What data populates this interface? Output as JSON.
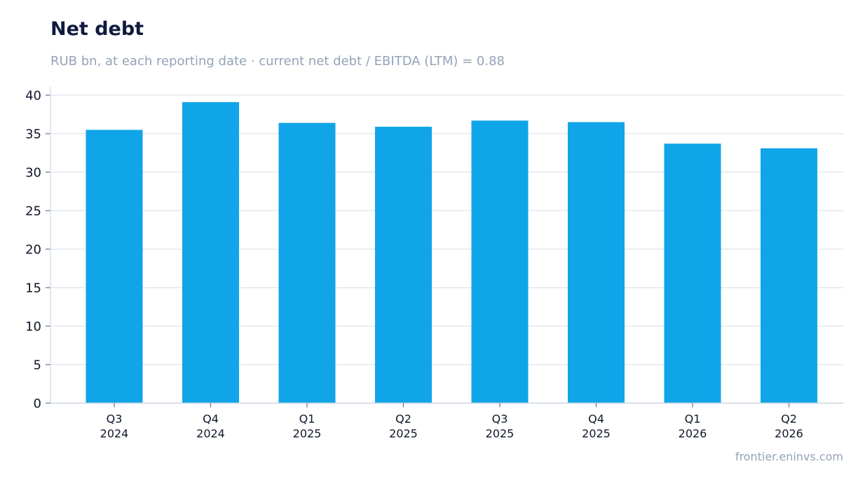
{
  "header": {
    "title": "Net debt",
    "subtitle": "RUB bn, at each reporting date · current net debt / EBITDA (LTM) = 0.88"
  },
  "footer": {
    "source": "frontier.eninvs.com"
  },
  "colors": {
    "bar": "#10a5e8",
    "grid": "#e2e8f0",
    "axis": "#cbd5e1",
    "title": "#0f1b3d",
    "muted": "#94a3b8"
  },
  "chart_data": {
    "type": "bar",
    "title": "Net debt",
    "subtitle": "RUB bn, at each reporting date · current net debt / EBITDA (LTM) = 0.88",
    "categories": [
      [
        "Q3",
        "2024"
      ],
      [
        "Q4",
        "2024"
      ],
      [
        "Q1",
        "2025"
      ],
      [
        "Q2",
        "2025"
      ],
      [
        "Q3",
        "2025"
      ],
      [
        "Q4",
        "2025"
      ],
      [
        "Q1",
        "2026"
      ],
      [
        "Q2",
        "2026"
      ]
    ],
    "values": [
      35.5,
      39.1,
      36.4,
      35.9,
      36.7,
      36.5,
      33.7,
      33.1
    ],
    "yticks": [
      0,
      5,
      10,
      15,
      20,
      25,
      30,
      35,
      40
    ],
    "ylim": [
      0,
      41
    ],
    "xlabel": "",
    "ylabel": "",
    "grid": true,
    "legend": "none"
  }
}
